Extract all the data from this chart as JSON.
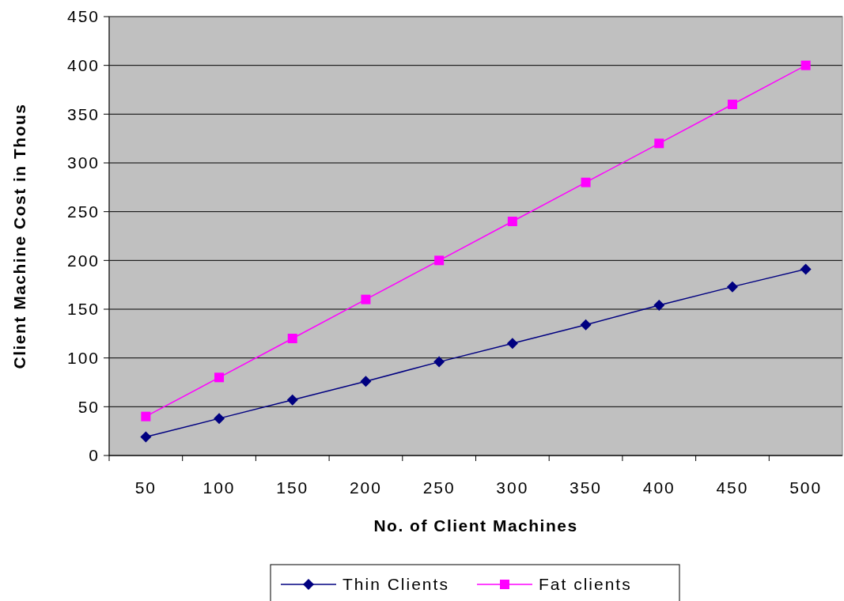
{
  "chart_data": {
    "type": "line",
    "xlabel": "No. of Client Machines",
    "ylabel": "Client Machine Cost in Thous",
    "categories": [
      "50",
      "100",
      "150",
      "200",
      "250",
      "300",
      "350",
      "400",
      "450",
      "500"
    ],
    "series": [
      {
        "name": "Thin Clients",
        "color": "#000080",
        "marker": "diamond",
        "values": [
          19,
          38,
          57,
          76,
          96,
          115,
          134,
          154,
          173,
          191
        ]
      },
      {
        "name": "Fat clients",
        "color": "#ff00ff",
        "marker": "square",
        "values": [
          40,
          80,
          120,
          160,
          200,
          240,
          280,
          320,
          360,
          400
        ]
      }
    ],
    "ylim": [
      0,
      450
    ],
    "yticks": [
      0,
      50,
      100,
      150,
      200,
      250,
      300,
      350,
      400,
      450
    ],
    "grid": "y",
    "legend": "bottom",
    "line_style": "solid"
  }
}
